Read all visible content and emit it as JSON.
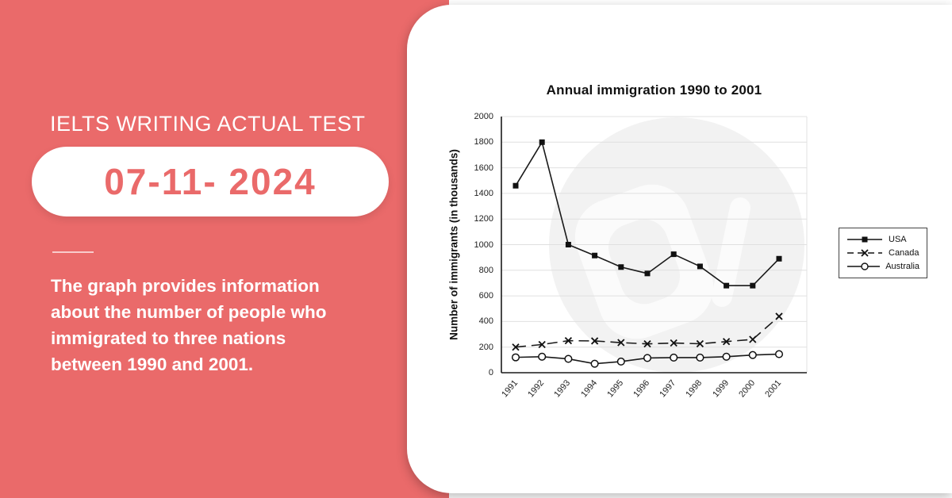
{
  "colors": {
    "background": "#ea6a6a",
    "card": "#ffffff",
    "accent_text": "#ea6a6a",
    "chart_line": "#1a1a1a",
    "gridline": "#e0e0e0",
    "watermark": "#f2f2f2"
  },
  "left_panel": {
    "heading": "IELTS WRITING ACTUAL TEST",
    "date_badge": "07-11- 2024",
    "description": "The graph provides information about the number of people who immigrated to three nations between 1990 and 2001.",
    "description_lines": [
      "The graph provides information",
      "about the number of people who",
      "immigrated to three nations",
      "between 1990 and 2001."
    ]
  },
  "chart_data": {
    "type": "line",
    "title": "Annual immigration 1990 to 2001",
    "ylabel": "Number of immigrants (in thousands)",
    "xlabel": "",
    "x": [
      "1991",
      "1992",
      "1993",
      "1994",
      "1995",
      "1996",
      "1997",
      "1998",
      "1999",
      "2000",
      "2001"
    ],
    "ylim": [
      0,
      2000
    ],
    "ytick_step": 200,
    "yticks": [
      0,
      200,
      400,
      600,
      800,
      1000,
      1200,
      1400,
      1600,
      1800,
      2000
    ],
    "grid": true,
    "legend_position": "right",
    "series": [
      {
        "name": "USA",
        "marker": "filled-square",
        "line": "solid",
        "values": [
          1460,
          1800,
          1000,
          915,
          825,
          775,
          925,
          830,
          680,
          680,
          890
        ]
      },
      {
        "name": "Canada",
        "marker": "x-cross",
        "line": "dashed",
        "values": [
          200,
          220,
          250,
          248,
          235,
          225,
          232,
          226,
          243,
          260,
          440
        ]
      },
      {
        "name": "Australia",
        "marker": "open-circle",
        "line": "solid",
        "values": [
          120,
          125,
          108,
          70,
          87,
          115,
          118,
          118,
          125,
          138,
          145
        ]
      }
    ]
  }
}
